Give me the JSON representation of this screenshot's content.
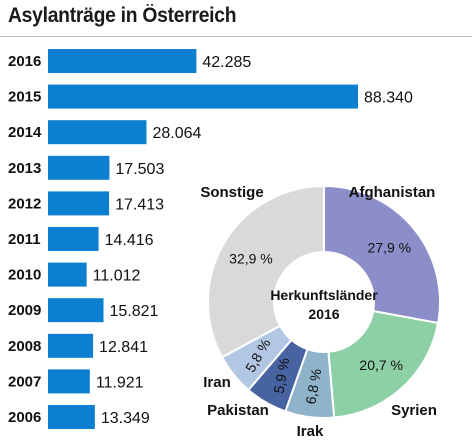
{
  "title": "Asylanträge in Österreich",
  "chart_data": [
    {
      "type": "bar",
      "orientation": "horizontal",
      "categories": [
        "2016",
        "2015",
        "2014",
        "2013",
        "2012",
        "2011",
        "2010",
        "2009",
        "2008",
        "2007",
        "2006"
      ],
      "values": [
        42285,
        88340,
        28064,
        17503,
        17413,
        14416,
        11012,
        15821,
        12841,
        11921,
        13349
      ],
      "value_labels": [
        "42.285",
        "88.340",
        "28.064",
        "17.503",
        "17.413",
        "14.416",
        "11.012",
        "15.821",
        "12.841",
        "11.921",
        "13.349"
      ],
      "color": "#0d7fd0"
    },
    {
      "type": "pie",
      "donut": true,
      "center_label": [
        "Herkunftsländer",
        "2016"
      ],
      "slices": [
        {
          "name": "Afghanistan",
          "value": 27.9,
          "label": "27,9 %",
          "color": "#8c8ec9"
        },
        {
          "name": "Syrien",
          "value": 20.7,
          "label": "20,7 %",
          "color": "#8dd0a6"
        },
        {
          "name": "Irak",
          "value": 6.8,
          "label": "6,8 %",
          "color": "#8fb3c9"
        },
        {
          "name": "Pakistan",
          "value": 5.9,
          "label": "5,9 %",
          "color": "#4763a2"
        },
        {
          "name": "Iran",
          "value": 5.8,
          "label": "5,8 %",
          "color": "#b2c7e3"
        },
        {
          "name": "Sonstige",
          "value": 32.9,
          "label": "32,9 %",
          "color": "#d9d9d9"
        }
      ]
    }
  ]
}
